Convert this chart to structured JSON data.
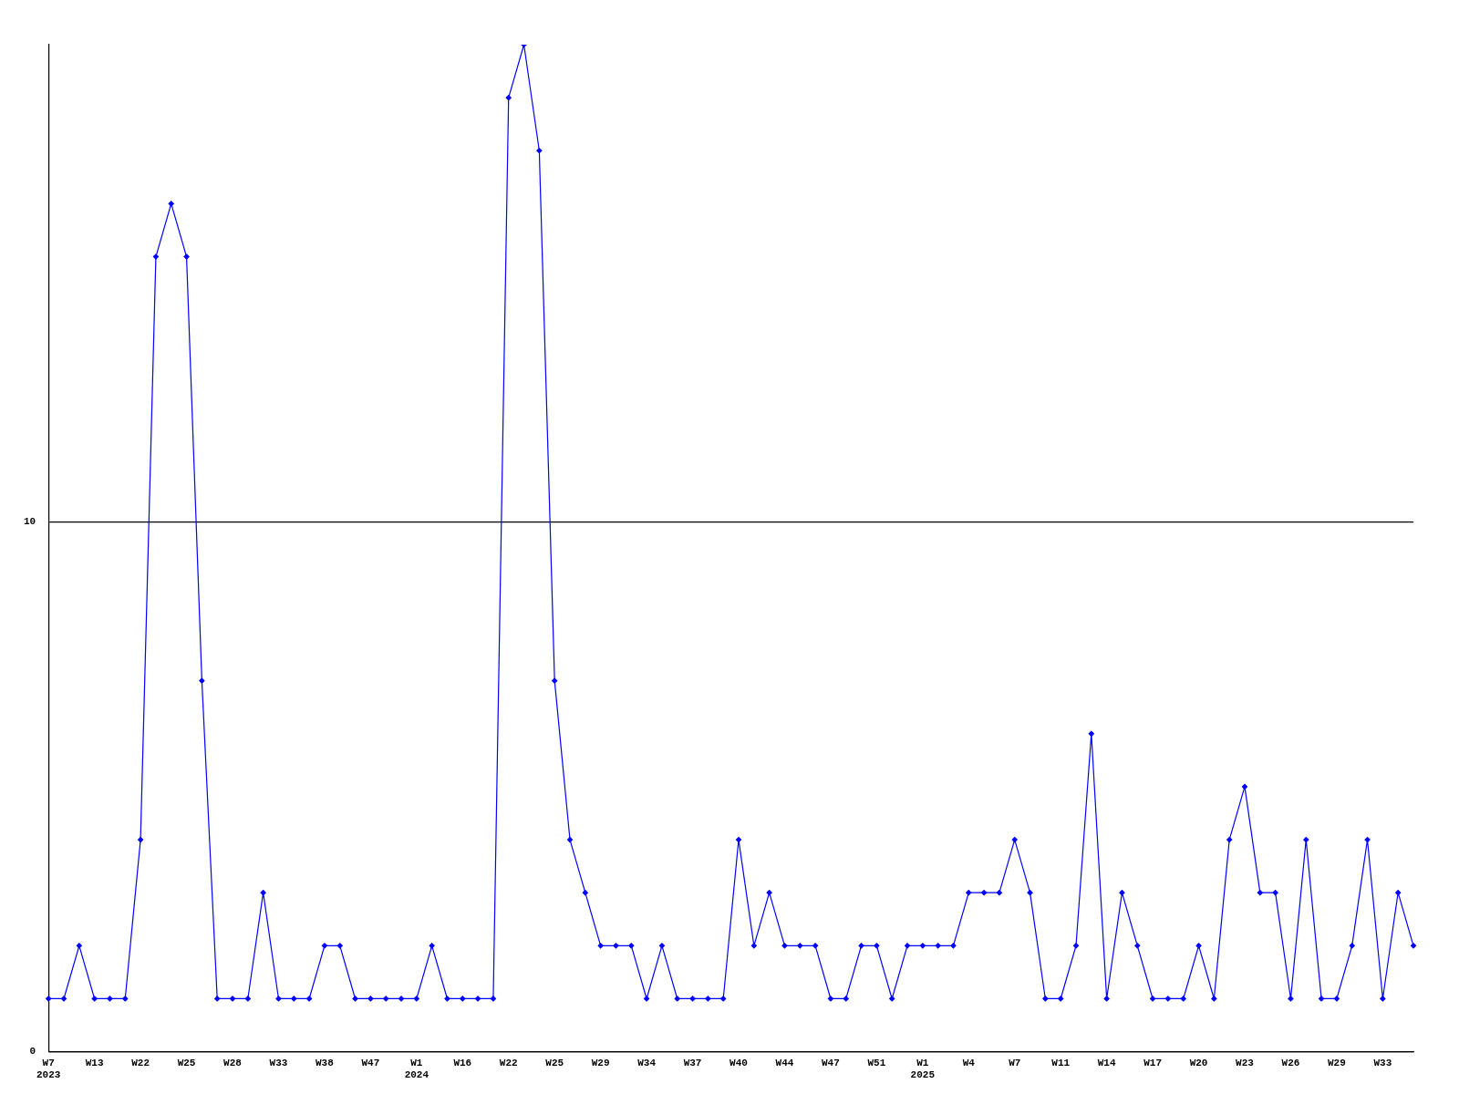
{
  "chart_data": {
    "type": "line",
    "categories": [
      "W7\n2023",
      null,
      null,
      "W13",
      null,
      null,
      "W22",
      null,
      null,
      "W25",
      null,
      null,
      "W28",
      null,
      null,
      "W33",
      null,
      null,
      "W38",
      null,
      null,
      "W47",
      null,
      null,
      "W1\n2024",
      null,
      null,
      "W16",
      null,
      null,
      "W22",
      null,
      null,
      "W25",
      null,
      null,
      "W29",
      null,
      null,
      "W34",
      null,
      null,
      "W37",
      null,
      null,
      "W40",
      null,
      null,
      "W44",
      null,
      null,
      "W47",
      null,
      null,
      "W51",
      null,
      null,
      "W1\n2025",
      null,
      null,
      "W4",
      null,
      null,
      "W7",
      null,
      null,
      "W11",
      null,
      null,
      "W14",
      null,
      null,
      "W17",
      null,
      null,
      "W20",
      null,
      null,
      "W23",
      null,
      null,
      "W26",
      null,
      null,
      "W29",
      null,
      null,
      "W33",
      null,
      null
    ],
    "series": [
      {
        "color": "#0000ff",
        "values": [
          1,
          1,
          2,
          1,
          1,
          1,
          4,
          15,
          16,
          15,
          7,
          1,
          1,
          1,
          3,
          1,
          1,
          1,
          2,
          2,
          1,
          1,
          1,
          1,
          1,
          2,
          1,
          1,
          1,
          1,
          18,
          19,
          17,
          7,
          4,
          3,
          2,
          2,
          2,
          1,
          2,
          1,
          1,
          1,
          1,
          4,
          2,
          3,
          2,
          2,
          2,
          1,
          1,
          2,
          2,
          1,
          2,
          2,
          2,
          2,
          3,
          3,
          3,
          4,
          3,
          1,
          1,
          2,
          6,
          1,
          3,
          2,
          1,
          1,
          1,
          2,
          1,
          4,
          5,
          3,
          3,
          1,
          4,
          1,
          1,
          2,
          4,
          1,
          3,
          2
        ]
      }
    ],
    "ylim": [
      0,
      19
    ],
    "yticks": [
      0,
      10
    ],
    "grid": "y",
    "legend": false,
    "marker": "diamond",
    "line_style": "solid"
  }
}
